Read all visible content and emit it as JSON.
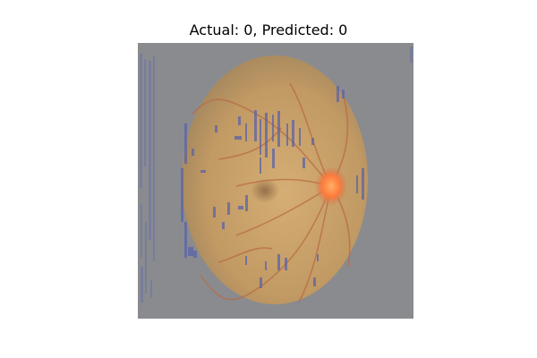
{
  "figure": {
    "title": "Actual: 0, Predicted: 0",
    "image_description_icon": "retina-fundus-heatmap-overlay",
    "colors": {
      "background_overlay": "#8a8b8f",
      "fundus_fill": "#c7a168",
      "fundus_edge": "#a9875a",
      "optic_disc": "#ff7a3c",
      "vessel": "#b86b45",
      "heatmap_spots": "#5b63a8"
    }
  }
}
